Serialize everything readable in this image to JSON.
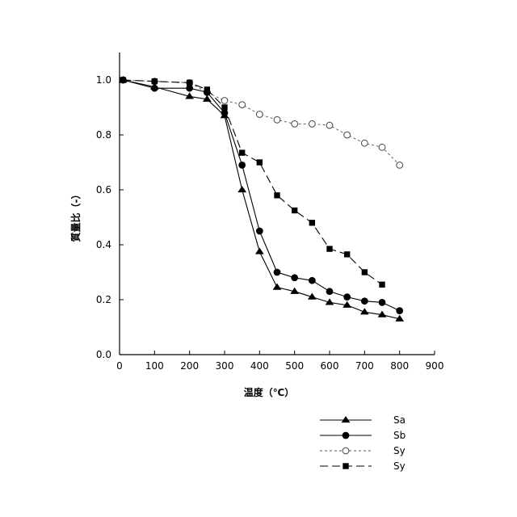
{
  "chart_data": {
    "type": "line",
    "title": "",
    "xlabel": "温度（℃）",
    "ylabel": "質量比（-）",
    "xlim": [
      0,
      900
    ],
    "ylim": [
      0.0,
      1.1
    ],
    "xticks": [
      0,
      100,
      200,
      300,
      400,
      500,
      600,
      700,
      800,
      900
    ],
    "yticks": [
      0.0,
      0.2,
      0.4,
      0.6,
      0.8,
      1.0
    ],
    "ytick_labels": [
      "0.0",
      "0.2",
      "0.4",
      "0.6",
      "0.8",
      "1.0"
    ],
    "grid": false,
    "legend_position": "bottom-right",
    "series": [
      {
        "name": "Sa",
        "marker": "triangle-filled",
        "linestyle": "solid",
        "points": [
          [
            10,
            1.0
          ],
          [
            100,
            0.975
          ],
          [
            200,
            0.94
          ],
          [
            250,
            0.93
          ],
          [
            300,
            0.87
          ],
          [
            350,
            0.6
          ],
          [
            400,
            0.375
          ],
          [
            450,
            0.245
          ],
          [
            500,
            0.23
          ],
          [
            550,
            0.21
          ],
          [
            600,
            0.19
          ],
          [
            650,
            0.18
          ],
          [
            700,
            0.155
          ],
          [
            750,
            0.145
          ],
          [
            800,
            0.13
          ]
        ]
      },
      {
        "name": "Sb",
        "marker": "circle-filled",
        "linestyle": "solid",
        "points": [
          [
            10,
            1.0
          ],
          [
            100,
            0.97
          ],
          [
            200,
            0.97
          ],
          [
            250,
            0.955
          ],
          [
            300,
            0.88
          ],
          [
            350,
            0.69
          ],
          [
            400,
            0.45
          ],
          [
            450,
            0.3
          ],
          [
            500,
            0.28
          ],
          [
            550,
            0.27
          ],
          [
            600,
            0.23
          ],
          [
            650,
            0.21
          ],
          [
            700,
            0.195
          ],
          [
            750,
            0.19
          ],
          [
            800,
            0.16
          ]
        ]
      },
      {
        "name": "Sy",
        "marker": "circle-open",
        "linestyle": "dotted",
        "points": [
          [
            10,
            1.0
          ],
          [
            100,
            0.995
          ],
          [
            200,
            0.99
          ],
          [
            250,
            0.955
          ],
          [
            300,
            0.925
          ],
          [
            350,
            0.91
          ],
          [
            400,
            0.875
          ],
          [
            450,
            0.855
          ],
          [
            500,
            0.84
          ],
          [
            550,
            0.84
          ],
          [
            600,
            0.835
          ],
          [
            650,
            0.8
          ],
          [
            700,
            0.77
          ],
          [
            750,
            0.755
          ],
          [
            800,
            0.69
          ]
        ]
      },
      {
        "name": "Sy",
        "marker": "square-filled",
        "linestyle": "dashed",
        "points": [
          [
            10,
            1.0
          ],
          [
            100,
            0.995
          ],
          [
            200,
            0.99
          ],
          [
            250,
            0.965
          ],
          [
            300,
            0.9
          ],
          [
            350,
            0.735
          ],
          [
            400,
            0.7
          ],
          [
            450,
            0.58
          ],
          [
            500,
            0.525
          ],
          [
            550,
            0.48
          ],
          [
            600,
            0.385
          ],
          [
            650,
            0.365
          ],
          [
            700,
            0.3
          ],
          [
            750,
            0.255
          ]
        ]
      }
    ]
  }
}
